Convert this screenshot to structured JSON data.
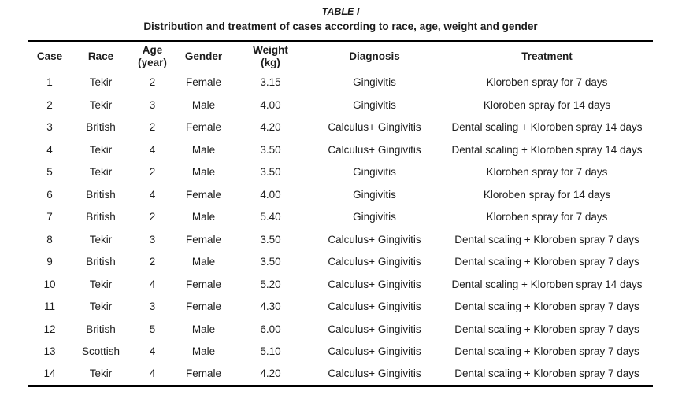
{
  "page": {
    "background": "#ffffff",
    "text_color": "#1c1c1c",
    "rule_color": "#000000"
  },
  "table_label": "TABLE I",
  "table_caption": "Distribution and treatment of cases according to race, age, weight and gender",
  "table": {
    "columns": [
      {
        "key": "case",
        "label": "Case"
      },
      {
        "key": "race",
        "label": "Race"
      },
      {
        "key": "age",
        "label": "Age\n(year)"
      },
      {
        "key": "gender",
        "label": "Gender"
      },
      {
        "key": "weight",
        "label": "Weight\n(kg)"
      },
      {
        "key": "diagnosis",
        "label": "Diagnosis"
      },
      {
        "key": "treatment",
        "label": "Treatment"
      }
    ],
    "rows": [
      [
        "1",
        "Tekir",
        "2",
        "Female",
        "3.15",
        "Gingivitis",
        "Kloroben spray for 7 days"
      ],
      [
        "2",
        "Tekir",
        "3",
        "Male",
        "4.00",
        "Gingivitis",
        "Kloroben spray for 14 days"
      ],
      [
        "3",
        "British",
        "2",
        "Female",
        "4.20",
        "Calculus+ Gingivitis",
        "Dental scaling + Kloroben spray 14 days"
      ],
      [
        "4",
        "Tekir",
        "4",
        "Male",
        "3.50",
        "Calculus+ Gingivitis",
        "Dental scaling + Kloroben spray 14 days"
      ],
      [
        "5",
        "Tekir",
        "2",
        "Male",
        "3.50",
        "Gingivitis",
        "Kloroben spray for 7 days"
      ],
      [
        "6",
        "British",
        "4",
        "Female",
        "4.00",
        "Gingivitis",
        "Kloroben spray for 14 days"
      ],
      [
        "7",
        "British",
        "2",
        "Male",
        "5.40",
        "Gingivitis",
        "Kloroben spray for 7 days"
      ],
      [
        "8",
        "Tekir",
        "3",
        "Female",
        "3.50",
        "Calculus+ Gingivitis",
        "Dental scaling + Kloroben spray 7 days"
      ],
      [
        "9",
        "British",
        "2",
        "Male",
        "3.50",
        "Calculus+ Gingivitis",
        "Dental scaling + Kloroben spray 7 days"
      ],
      [
        "10",
        "Tekir",
        "4",
        "Female",
        "5.20",
        "Calculus+ Gingivitis",
        "Dental scaling + Kloroben spray 14 days"
      ],
      [
        "11",
        "Tekir",
        "3",
        "Female",
        "4.30",
        "Calculus+ Gingivitis",
        "Dental scaling + Kloroben spray 7 days"
      ],
      [
        "12",
        "British",
        "5",
        "Male",
        "6.00",
        "Calculus+ Gingivitis",
        "Dental scaling + Kloroben spray 7 days"
      ],
      [
        "13",
        "Scottish",
        "4",
        "Male",
        "5.10",
        "Calculus+ Gingivitis",
        "Dental scaling + Kloroben spray 7 days"
      ],
      [
        "14",
        "Tekir",
        "4",
        "Female",
        "4.20",
        "Calculus+ Gingivitis",
        "Dental scaling + Kloroben spray 7 days"
      ]
    ]
  }
}
